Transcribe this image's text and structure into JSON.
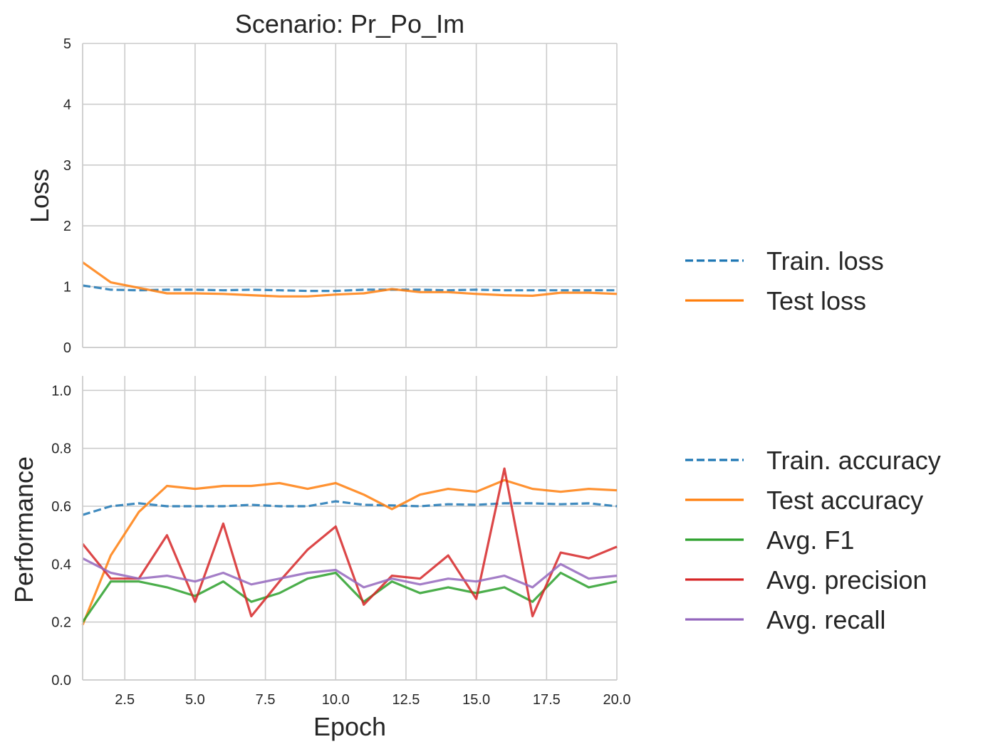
{
  "chart_data": [
    {
      "type": "line",
      "title": "Scenario: Pr_Po_Im",
      "xlabel": "",
      "ylabel": "Loss",
      "xlim": [
        1,
        20
      ],
      "ylim": [
        0,
        5
      ],
      "xticks": [
        "2.5",
        "5.0",
        "7.5",
        "10.0",
        "12.5",
        "15.0",
        "17.5",
        "20.0"
      ],
      "xtick_values": [
        2.5,
        5.0,
        7.5,
        10.0,
        12.5,
        15.0,
        17.5,
        20.0
      ],
      "show_xtick_labels": false,
      "yticks": [
        "0",
        "1",
        "2",
        "3",
        "4",
        "5"
      ],
      "ytick_values": [
        0,
        1,
        2,
        3,
        4,
        5
      ],
      "grid": true,
      "legend_placement": "right",
      "x": [
        1,
        2,
        3,
        4,
        5,
        6,
        7,
        8,
        9,
        10,
        11,
        12,
        13,
        14,
        15,
        16,
        17,
        18,
        19,
        20
      ],
      "series": [
        {
          "name": "Train. loss",
          "color": "#1f77b4",
          "dashed": true,
          "values": [
            1.02,
            0.95,
            0.94,
            0.95,
            0.95,
            0.94,
            0.95,
            0.94,
            0.93,
            0.93,
            0.95,
            0.95,
            0.95,
            0.94,
            0.95,
            0.94,
            0.94,
            0.94,
            0.94,
            0.94
          ]
        },
        {
          "name": "Test loss",
          "color": "#ff7f0e",
          "dashed": false,
          "values": [
            1.4,
            1.07,
            0.98,
            0.89,
            0.89,
            0.88,
            0.86,
            0.84,
            0.84,
            0.87,
            0.89,
            0.96,
            0.91,
            0.91,
            0.88,
            0.86,
            0.85,
            0.9,
            0.9,
            0.88
          ]
        }
      ]
    },
    {
      "type": "line",
      "title": "",
      "xlabel": "Epoch",
      "ylabel": "Performance",
      "xlim": [
        1,
        20
      ],
      "ylim": [
        0,
        1.05
      ],
      "xticks": [
        "2.5",
        "5.0",
        "7.5",
        "10.0",
        "12.5",
        "15.0",
        "17.5",
        "20.0"
      ],
      "xtick_values": [
        2.5,
        5.0,
        7.5,
        10.0,
        12.5,
        15.0,
        17.5,
        20.0
      ],
      "show_xtick_labels": true,
      "yticks": [
        "0.0",
        "0.2",
        "0.4",
        "0.6",
        "0.8",
        "1.0"
      ],
      "ytick_values": [
        0.0,
        0.2,
        0.4,
        0.6,
        0.8,
        1.0
      ],
      "grid": true,
      "legend_placement": "right",
      "x": [
        1,
        2,
        3,
        4,
        5,
        6,
        7,
        8,
        9,
        10,
        11,
        12,
        13,
        14,
        15,
        16,
        17,
        18,
        19,
        20
      ],
      "series": [
        {
          "name": "Train. accuracy",
          "color": "#1f77b4",
          "dashed": true,
          "values": [
            0.57,
            0.6,
            0.61,
            0.6,
            0.6,
            0.6,
            0.605,
            0.6,
            0.6,
            0.617,
            0.605,
            0.603,
            0.6,
            0.607,
            0.605,
            0.61,
            0.61,
            0.607,
            0.61,
            0.6
          ]
        },
        {
          "name": "Test accuracy",
          "color": "#ff7f0e",
          "dashed": false,
          "values": [
            0.19,
            0.43,
            0.58,
            0.67,
            0.66,
            0.67,
            0.67,
            0.68,
            0.66,
            0.68,
            0.64,
            0.59,
            0.64,
            0.66,
            0.65,
            0.69,
            0.66,
            0.65,
            0.66,
            0.655
          ]
        },
        {
          "name": "Avg. F1",
          "color": "#2ca02c",
          "dashed": false,
          "values": [
            0.2,
            0.34,
            0.34,
            0.32,
            0.29,
            0.34,
            0.27,
            0.3,
            0.35,
            0.37,
            0.27,
            0.34,
            0.3,
            0.32,
            0.3,
            0.32,
            0.27,
            0.37,
            0.32,
            0.34
          ]
        },
        {
          "name": "Avg. precision",
          "color": "#d62728",
          "dashed": false,
          "values": [
            0.47,
            0.35,
            0.35,
            0.5,
            0.27,
            0.54,
            0.22,
            0.34,
            0.45,
            0.53,
            0.26,
            0.36,
            0.35,
            0.43,
            0.28,
            0.73,
            0.22,
            0.44,
            0.42,
            0.46
          ]
        },
        {
          "name": "Avg. recall",
          "color": "#9467bd",
          "dashed": false,
          "values": [
            0.42,
            0.37,
            0.35,
            0.36,
            0.34,
            0.37,
            0.33,
            0.35,
            0.37,
            0.38,
            0.32,
            0.35,
            0.33,
            0.35,
            0.34,
            0.36,
            0.32,
            0.4,
            0.35,
            0.36
          ]
        }
      ]
    }
  ]
}
